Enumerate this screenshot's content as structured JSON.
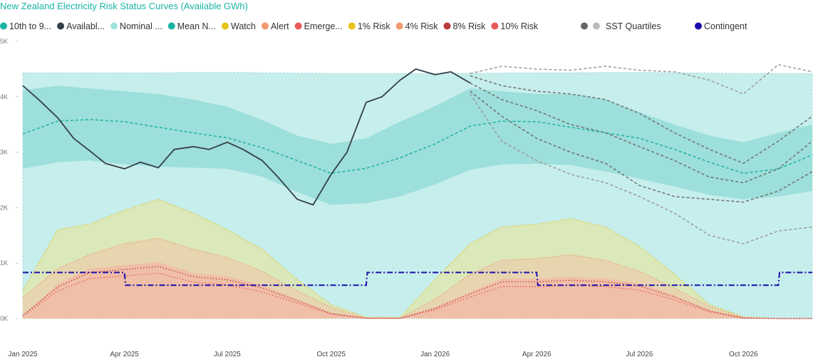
{
  "chart_data": {
    "type": "area",
    "title": "New Zealand Electricity Risk Status Curves (Available GWh)",
    "xlabel": "",
    "ylabel": "",
    "ylim": [
      0,
      5000
    ],
    "xlim": [
      "2025-01-01",
      "2026-12-01"
    ],
    "grid": false,
    "legend_position": "top",
    "x_ticks": [
      "Jan 2025",
      "Apr 2025",
      "Jul 2025",
      "Oct 2025",
      "Jan 2026",
      "Apr 2026",
      "Jul 2026",
      "Oct 2026"
    ],
    "y_ticks": [
      "0K",
      "1K",
      "2K",
      "3K",
      "4K",
      "5K"
    ],
    "y_tick_values": [
      0,
      1000,
      2000,
      3000,
      4000,
      5000
    ],
    "legend": [
      {
        "label": "10th to 9...",
        "color": "#19b4a4",
        "marker": "circle"
      },
      {
        "label": "Availabl...",
        "color": "#333f48",
        "marker": "circle"
      },
      {
        "label": "Nominal ...",
        "color": "#9fe2de",
        "marker": "circle"
      },
      {
        "label": "Mean N...",
        "color": "#19b4a4",
        "marker": "circle"
      },
      {
        "label": "Watch",
        "color": "#e8c31c",
        "marker": "circle"
      },
      {
        "label": "Alert",
        "color": "#f0996c",
        "marker": "circle"
      },
      {
        "label": "Emerge...",
        "color": "#e85a5a",
        "marker": "circle"
      },
      {
        "label": "1% Risk",
        "color": "#e8c31c",
        "marker": "circle"
      },
      {
        "label": "4% Risk",
        "color": "#f0996c",
        "marker": "circle"
      },
      {
        "label": "8% Risk",
        "color": "#b83b3b",
        "marker": "circle"
      },
      {
        "label": "10% Risk",
        "color": "#e85a5a",
        "marker": "circle"
      },
      {
        "label": "SST Quartiles",
        "color": "#777777",
        "marker": "double-circle"
      },
      {
        "label": "Contingent",
        "color": "#1a0dab",
        "marker": "circle"
      }
    ],
    "series": [
      {
        "name": "Nominal ...",
        "style": "band",
        "color": "#c6eeec",
        "x": [
          "2025-01-01",
          "2025-04-01",
          "2025-07-01",
          "2025-10-01",
          "2026-01-01",
          "2026-04-01",
          "2026-07-01",
          "2026-10-01",
          "2026-12-01"
        ],
        "low": [
          0,
          0,
          0,
          0,
          0,
          0,
          0,
          0,
          0
        ],
        "high": [
          4430,
          4430,
          4440,
          4420,
          4420,
          4430,
          4440,
          4420,
          4420
        ]
      },
      {
        "name": "10th to 9...",
        "style": "band",
        "color": "#9ddfdb",
        "x": [
          "2025-01-01",
          "2025-02-01",
          "2025-03-01",
          "2025-04-01",
          "2025-05-01",
          "2025-06-01",
          "2025-07-01",
          "2025-08-01",
          "2025-09-01",
          "2025-10-01",
          "2025-11-01",
          "2025-12-01",
          "2026-01-01",
          "2026-02-01",
          "2026-03-01",
          "2026-04-01",
          "2026-05-01",
          "2026-06-01",
          "2026-07-01",
          "2026-08-01",
          "2026-09-01",
          "2026-10-01",
          "2026-11-01",
          "2026-12-01"
        ],
        "low": [
          2700,
          2820,
          2850,
          2780,
          2740,
          2720,
          2700,
          2560,
          2280,
          2050,
          2080,
          2200,
          2420,
          2680,
          2780,
          2790,
          2770,
          2650,
          2520,
          2380,
          2230,
          2150,
          2200,
          2300
        ],
        "high": [
          4120,
          4200,
          4150,
          4100,
          4050,
          3950,
          3820,
          3580,
          3300,
          3150,
          3250,
          3550,
          3830,
          4150,
          4100,
          4050,
          4050,
          3950,
          3720,
          3500,
          3300,
          3180,
          3350,
          3500
        ]
      },
      {
        "name": "Mean N...",
        "style": "dashed-line",
        "color": "#19b4a4",
        "x": [
          "2025-01-01",
          "2025-02-01",
          "2025-03-01",
          "2025-04-01",
          "2025-05-01",
          "2025-06-01",
          "2025-07-01",
          "2025-08-01",
          "2025-09-01",
          "2025-10-01",
          "2025-11-01",
          "2025-12-01",
          "2026-01-01",
          "2026-02-01",
          "2026-03-01",
          "2026-04-01",
          "2026-05-01",
          "2026-06-01",
          "2026-07-01",
          "2026-08-01",
          "2026-09-01",
          "2026-10-01",
          "2026-11-01",
          "2026-12-01"
        ],
        "y": [
          3330,
          3560,
          3590,
          3550,
          3450,
          3350,
          3260,
          3080,
          2850,
          2620,
          2710,
          2900,
          3150,
          3470,
          3560,
          3550,
          3450,
          3350,
          3250,
          3050,
          2820,
          2620,
          2700,
          2950
        ]
      },
      {
        "name": "Watch",
        "style": "area-dotted",
        "color": "#e8c31c",
        "x": [
          "2025-01-01",
          "2025-02-01",
          "2025-03-01",
          "2025-04-01",
          "2025-05-01",
          "2025-06-01",
          "2025-07-01",
          "2025-08-01",
          "2025-09-01",
          "2025-10-01",
          "2025-11-01",
          "2025-12-01",
          "2026-01-01",
          "2026-02-01",
          "2026-03-01",
          "2026-04-01",
          "2026-05-01",
          "2026-06-01",
          "2026-07-01",
          "2026-08-01",
          "2026-09-01",
          "2026-10-01",
          "2026-11-01",
          "2026-12-01"
        ],
        "y": [
          500,
          1600,
          1700,
          1950,
          2150,
          1900,
          1600,
          1250,
          700,
          250,
          20,
          20,
          700,
          1350,
          1650,
          1700,
          1800,
          1650,
          1300,
          800,
          250,
          30,
          0,
          0
        ]
      },
      {
        "name": "Alert",
        "style": "area-dotted",
        "color": "#f0996c",
        "x": [
          "2025-01-01",
          "2025-02-01",
          "2025-03-01",
          "2025-04-01",
          "2025-05-01",
          "2025-06-01",
          "2025-07-01",
          "2025-08-01",
          "2025-09-01",
          "2025-10-01",
          "2025-11-01",
          "2025-12-01",
          "2026-01-01",
          "2026-02-01",
          "2026-03-01",
          "2026-04-01",
          "2026-05-01",
          "2026-06-01",
          "2026-07-01",
          "2026-08-01",
          "2026-09-01",
          "2026-10-01",
          "2026-11-01",
          "2026-12-01"
        ],
        "y": [
          380,
          900,
          1150,
          1350,
          1450,
          1250,
          1100,
          850,
          500,
          200,
          10,
          10,
          350,
          800,
          1050,
          1080,
          1150,
          1050,
          850,
          550,
          220,
          20,
          0,
          0
        ]
      },
      {
        "name": "Emerge...",
        "style": "area-dotted",
        "color": "#e85a5a",
        "x": [
          "2025-01-01",
          "2025-02-01",
          "2025-03-01",
          "2025-04-01",
          "2025-05-01",
          "2025-06-01",
          "2025-07-01",
          "2025-08-01",
          "2025-09-01",
          "2025-10-01",
          "2025-11-01",
          "2025-12-01",
          "2026-01-01",
          "2026-02-01",
          "2026-03-01",
          "2026-04-01",
          "2026-05-01",
          "2026-06-01",
          "2026-07-01",
          "2026-08-01",
          "2026-09-01",
          "2026-10-01",
          "2026-11-01",
          "2026-12-01"
        ],
        "y": [
          60,
          620,
          900,
          960,
          1020,
          820,
          760,
          600,
          350,
          100,
          5,
          5,
          200,
          480,
          720,
          720,
          750,
          720,
          640,
          420,
          150,
          10,
          0,
          0
        ]
      },
      {
        "name": "Contingent",
        "style": "dash-dot-step",
        "color": "#1a0dab",
        "x": [
          "2025-01-01",
          "2025-04-01",
          "2025-04-02",
          "2025-11-01",
          "2025-11-02",
          "2026-04-01",
          "2026-04-02",
          "2026-11-01",
          "2026-11-02",
          "2026-12-01"
        ],
        "y": [
          830,
          830,
          600,
          600,
          830,
          830,
          600,
          600,
          830,
          830
        ]
      },
      {
        "name": "Availabl...",
        "style": "solid-line",
        "color": "#333f48",
        "x": [
          "2025-01-01",
          "2025-01-15",
          "2025-02-01",
          "2025-02-15",
          "2025-03-01",
          "2025-03-15",
          "2025-04-01",
          "2025-04-15",
          "2025-05-01",
          "2025-05-15",
          "2025-06-01",
          "2025-06-15",
          "2025-07-01",
          "2025-07-15",
          "2025-08-01",
          "2025-08-15",
          "2025-09-01",
          "2025-09-15",
          "2025-10-01",
          "2025-10-15",
          "2025-11-01",
          "2025-11-15",
          "2025-12-01",
          "2025-12-15",
          "2026-01-01",
          "2026-01-15",
          "2026-02-01"
        ],
        "y": [
          4200,
          3950,
          3620,
          3250,
          3030,
          2800,
          2700,
          2820,
          2720,
          3050,
          3100,
          3050,
          3180,
          3050,
          2850,
          2550,
          2150,
          2050,
          2600,
          3000,
          3900,
          4000,
          4300,
          4500,
          4400,
          4450,
          4250
        ]
      },
      {
        "name": "SST Quartiles",
        "style": "dashed-multi",
        "color": "#888888",
        "x": [
          "2026-02-01",
          "2026-03-01",
          "2026-04-01",
          "2026-05-01",
          "2026-06-01",
          "2026-07-01",
          "2026-08-01",
          "2026-09-01",
          "2026-10-01",
          "2026-11-01",
          "2026-12-01"
        ],
        "lines": [
          {
            "y": [
              4420,
              4550,
              4500,
              4480,
              4550,
              4480,
              4450,
              4300,
              4050,
              4580,
              4450
            ]
          },
          {
            "y": [
              4380,
              4200,
              4100,
              4050,
              3950,
              3700,
              3350,
              3050,
              2800,
              3200,
              3650
            ]
          },
          {
            "y": [
              4250,
              3950,
              3750,
              3500,
              3350,
              3100,
              2850,
              2550,
              2450,
              2700,
              3200
            ]
          },
          {
            "y": [
              4100,
              3650,
              3250,
              3000,
              2800,
              2400,
              2200,
              2150,
              2100,
              2300,
              2650
            ]
          },
          {
            "y": [
              4050,
              3200,
              2850,
              2600,
              2450,
              2200,
              1900,
              1500,
              1350,
              1580,
              1650
            ]
          }
        ]
      }
    ]
  }
}
